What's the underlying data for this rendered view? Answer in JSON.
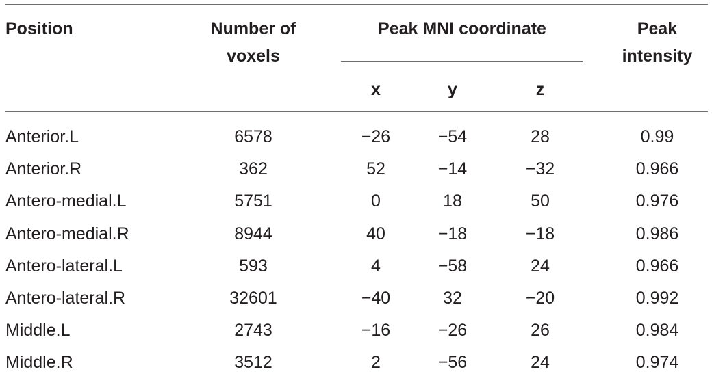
{
  "headers": {
    "position": "Position",
    "voxels_line1": "Number of",
    "voxels_line2": "voxels",
    "peak_mni": "Peak MNI coordinate",
    "x": "x",
    "y": "y",
    "z": "z",
    "intensity_line1": "Peak",
    "intensity_line2": "intensity"
  },
  "rows": [
    {
      "position": "Anterior.L",
      "voxels": "6578",
      "x": "−26",
      "y": "−54",
      "z": "28",
      "intensity": "0.99"
    },
    {
      "position": "Anterior.R",
      "voxels": "362",
      "x": "52",
      "y": "−14",
      "z": "−32",
      "intensity": "0.966"
    },
    {
      "position": "Antero-medial.L",
      "voxels": "5751",
      "x": "0",
      "y": "18",
      "z": "50",
      "intensity": "0.976"
    },
    {
      "position": "Antero-medial.R",
      "voxels": "8944",
      "x": "40",
      "y": "−18",
      "z": "−18",
      "intensity": "0.986"
    },
    {
      "position": "Antero-lateral.L",
      "voxels": "593",
      "x": "4",
      "y": "−58",
      "z": "24",
      "intensity": "0.966"
    },
    {
      "position": "Antero-lateral.R",
      "voxels": "32601",
      "x": "−40",
      "y": "32",
      "z": "−20",
      "intensity": "0.992"
    },
    {
      "position": "Middle.L",
      "voxels": "2743",
      "x": "−16",
      "y": "−26",
      "z": "26",
      "intensity": "0.984"
    },
    {
      "position": "Middle.R",
      "voxels": "3512",
      "x": "2",
      "y": "−56",
      "z": "24",
      "intensity": "0.974"
    }
  ]
}
